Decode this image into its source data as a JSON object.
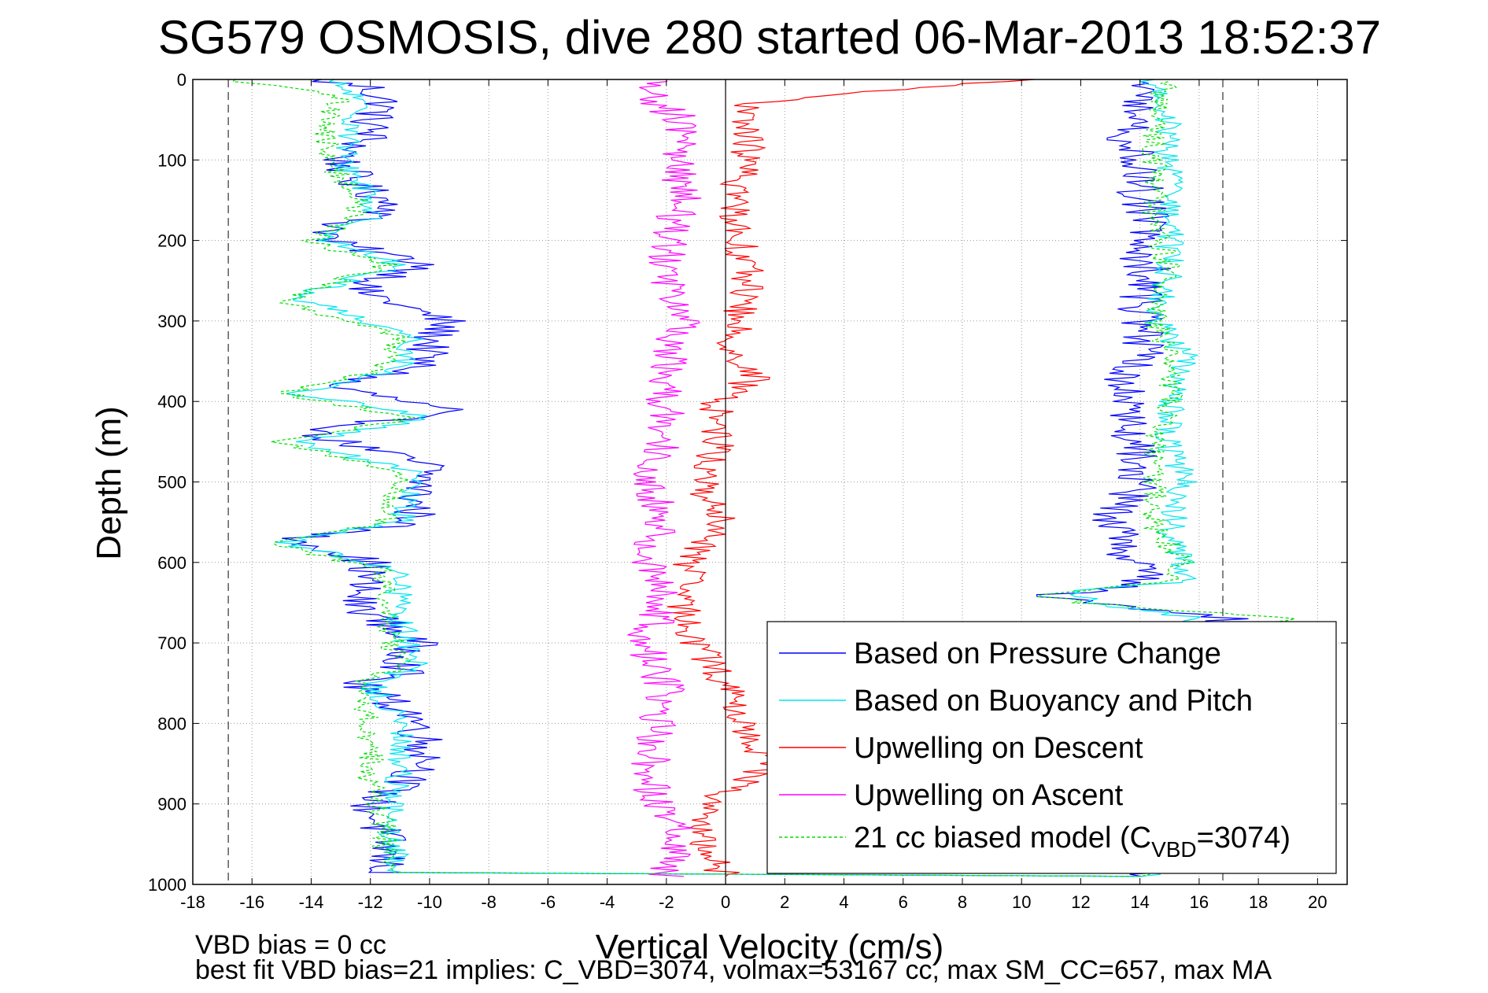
{
  "chart_data": {
    "type": "line",
    "title": "SG579 OSMOSIS, dive 280 started 06-Mar-2013 18:52:37",
    "xlabel": "Vertical Velocity (cm/s)",
    "ylabel": "Depth (m)",
    "xlim": [
      -18,
      21
    ],
    "ylim": [
      0,
      1000
    ],
    "y_reversed": true,
    "grid": true,
    "xticks": [
      -18,
      -16,
      -14,
      -12,
      -10,
      -8,
      -6,
      -4,
      -2,
      0,
      2,
      4,
      6,
      8,
      10,
      12,
      14,
      16,
      18,
      20
    ],
    "yticks": [
      0,
      100,
      200,
      300,
      400,
      500,
      600,
      700,
      800,
      900,
      1000
    ],
    "legend_position": "bottom-right",
    "reference_lines": {
      "zero_x": 0,
      "dashed_x": [
        -16.8,
        16.8
      ]
    },
    "series": [
      {
        "name": "Based on Pressure Change",
        "color": "#0000ff",
        "noise": 0.8,
        "points": [
          [
            -14,
            0
          ],
          [
            -12,
            10
          ],
          [
            -11.5,
            30
          ],
          [
            -12,
            50
          ],
          [
            -12,
            70
          ],
          [
            -13,
            100
          ],
          [
            -12.5,
            130
          ],
          [
            -11,
            160
          ],
          [
            -13,
            180
          ],
          [
            -13.5,
            200
          ],
          [
            -10,
            230
          ],
          [
            -12.5,
            260
          ],
          [
            -9.5,
            300
          ],
          [
            -10,
            330
          ],
          [
            -10.5,
            360
          ],
          [
            -13.5,
            380
          ],
          [
            -9.5,
            410
          ],
          [
            -14,
            440
          ],
          [
            -10,
            480
          ],
          [
            -10.5,
            520
          ],
          [
            -10.5,
            550
          ],
          [
            -14.5,
            570
          ],
          [
            -12,
            600
          ],
          [
            -12.5,
            650
          ],
          [
            -10.5,
            700
          ],
          [
            -11,
            740
          ],
          [
            -12.5,
            750
          ],
          [
            -10.5,
            790
          ],
          [
            -10,
            850
          ],
          [
            -12,
            900
          ],
          [
            -11.5,
            950
          ],
          [
            -11.5,
            985
          ],
          [
            14,
            990
          ],
          [
            14,
            950
          ],
          [
            14,
            900
          ],
          [
            13.5,
            850
          ],
          [
            13,
            800
          ],
          [
            14,
            750
          ],
          [
            14,
            700
          ],
          [
            17,
            670
          ],
          [
            12,
            650
          ],
          [
            11,
            640
          ],
          [
            14,
            630
          ],
          [
            14,
            610
          ],
          [
            13.5,
            580
          ],
          [
            13,
            540
          ],
          [
            14,
            500
          ],
          [
            14,
            460
          ],
          [
            13.5,
            420
          ],
          [
            13.5,
            380
          ],
          [
            14,
            340
          ],
          [
            14,
            300
          ],
          [
            14,
            270
          ],
          [
            14.5,
            250
          ],
          [
            14,
            220
          ],
          [
            14.5,
            180
          ],
          [
            14,
            150
          ],
          [
            14,
            110
          ],
          [
            13.5,
            70
          ],
          [
            14,
            30
          ],
          [
            14,
            0
          ]
        ]
      },
      {
        "name": "Based on Buoyancy and Pitch",
        "color": "#00e5ee",
        "noise": 0.5,
        "points": [
          [
            -13.5,
            0
          ],
          [
            -12.5,
            20
          ],
          [
            -12.5,
            60
          ],
          [
            -13,
            100
          ],
          [
            -12,
            140
          ],
          [
            -12,
            170
          ],
          [
            -13.5,
            200
          ],
          [
            -11,
            230
          ],
          [
            -14.5,
            270
          ],
          [
            -10.5,
            320
          ],
          [
            -11,
            360
          ],
          [
            -14.5,
            390
          ],
          [
            -10,
            420
          ],
          [
            -14.5,
            450
          ],
          [
            -10.5,
            490
          ],
          [
            -11,
            550
          ],
          [
            -15,
            575
          ],
          [
            -11,
            610
          ],
          [
            -11,
            670
          ],
          [
            -10.5,
            730
          ],
          [
            -12,
            750
          ],
          [
            -11,
            800
          ],
          [
            -11,
            870
          ],
          [
            -11.5,
            930
          ],
          [
            -11,
            985
          ],
          [
            14.5,
            990
          ],
          [
            15,
            940
          ],
          [
            14.5,
            890
          ],
          [
            14.5,
            830
          ],
          [
            14.5,
            760
          ],
          [
            15,
            700
          ],
          [
            16,
            670
          ],
          [
            12.5,
            650
          ],
          [
            11.5,
            635
          ],
          [
            15.5,
            625
          ],
          [
            15.5,
            600
          ],
          [
            15,
            560
          ],
          [
            15.5,
            500
          ],
          [
            15,
            450
          ],
          [
            15,
            400
          ],
          [
            15.5,
            340
          ],
          [
            14.5,
            300
          ],
          [
            15,
            240
          ],
          [
            15,
            180
          ],
          [
            15,
            140
          ],
          [
            15,
            90
          ],
          [
            15,
            40
          ],
          [
            14.5,
            0
          ]
        ]
      },
      {
        "name": "Upwelling on Descent",
        "color": "#ff0000",
        "noise": 0.6,
        "points": [
          [
            10,
            0
          ],
          [
            0.5,
            30
          ],
          [
            0.8,
            80
          ],
          [
            0.3,
            150
          ],
          [
            0.5,
            200
          ],
          [
            0.8,
            260
          ],
          [
            0.3,
            300
          ],
          [
            0.3,
            350
          ],
          [
            1,
            370
          ],
          [
            -0.3,
            400
          ],
          [
            -0.2,
            450
          ],
          [
            -0.8,
            500
          ],
          [
            -0.2,
            550
          ],
          [
            -1.2,
            600
          ],
          [
            -1.5,
            650
          ],
          [
            -1,
            700
          ],
          [
            0,
            750
          ],
          [
            0.5,
            800
          ],
          [
            1.5,
            850
          ],
          [
            -0.5,
            900
          ],
          [
            -1,
            940
          ],
          [
            0,
            990
          ]
        ]
      },
      {
        "name": "Upwelling on Ascent",
        "color": "#ff00ff",
        "noise": 0.7,
        "points": [
          [
            -2,
            990
          ],
          [
            -1.5,
            940
          ],
          [
            -2.5,
            880
          ],
          [
            -2.5,
            820
          ],
          [
            -2,
            760
          ],
          [
            -2.8,
            700
          ],
          [
            -2,
            650
          ],
          [
            -2.5,
            600
          ],
          [
            -2.3,
            550
          ],
          [
            -2.5,
            500
          ],
          [
            -2,
            450
          ],
          [
            -2,
            400
          ],
          [
            -2,
            350
          ],
          [
            -1.5,
            300
          ],
          [
            -2,
            250
          ],
          [
            -2,
            200
          ],
          [
            -1.5,
            150
          ],
          [
            -1.5,
            100
          ],
          [
            -1.5,
            50
          ],
          [
            -3,
            10
          ],
          [
            -2,
            0
          ]
        ]
      },
      {
        "name": "21 cc biased model (C_VBD=3074)",
        "color": "#00dd00",
        "dashed": true,
        "noise": 0.45,
        "points": [
          [
            -17,
            0
          ],
          [
            -13,
            20
          ],
          [
            -13.5,
            60
          ],
          [
            -13.5,
            100
          ],
          [
            -12.5,
            140
          ],
          [
            -12.5,
            170
          ],
          [
            -14,
            200
          ],
          [
            -11.5,
            230
          ],
          [
            -15,
            275
          ],
          [
            -11,
            320
          ],
          [
            -11.5,
            360
          ],
          [
            -15,
            390
          ],
          [
            -10.5,
            420
          ],
          [
            -15,
            450
          ],
          [
            -11,
            490
          ],
          [
            -11.5,
            550
          ],
          [
            -15.5,
            575
          ],
          [
            -11.5,
            610
          ],
          [
            -11.5,
            670
          ],
          [
            -11,
            730
          ],
          [
            -12.5,
            750
          ],
          [
            -12,
            800
          ],
          [
            -12,
            870
          ],
          [
            -11.5,
            930
          ],
          [
            -11.5,
            985
          ],
          [
            14,
            990
          ],
          [
            14.5,
            940
          ],
          [
            14.5,
            890
          ],
          [
            14,
            830
          ],
          [
            14,
            760
          ],
          [
            15,
            700
          ],
          [
            19,
            670
          ],
          [
            12,
            650
          ],
          [
            10.5,
            640
          ],
          [
            15,
            625
          ],
          [
            15.5,
            600
          ],
          [
            14.5,
            560
          ],
          [
            14.5,
            500
          ],
          [
            14.5,
            450
          ],
          [
            15,
            400
          ],
          [
            15,
            340
          ],
          [
            14.5,
            300
          ],
          [
            15,
            240
          ],
          [
            14.5,
            180
          ],
          [
            14.5,
            140
          ],
          [
            14.5,
            90
          ],
          [
            14.5,
            40
          ],
          [
            15,
            0
          ]
        ]
      }
    ],
    "legend_entries": [
      {
        "label": "Based on Pressure Change"
      },
      {
        "label": "Based on Buoyancy and Pitch"
      },
      {
        "label": "Upwelling on Descent"
      },
      {
        "label": "Upwelling on Ascent"
      },
      {
        "label_pre": "21 cc biased model (C",
        "label_sub": "VBD",
        "label_post": "=3074)"
      }
    ],
    "annotations": [
      "VBD bias = 0 cc",
      "best fit VBD bias=21 implies: C_VBD=3074, volmax=53167 cc, max SM_CC=657, max MA"
    ]
  }
}
